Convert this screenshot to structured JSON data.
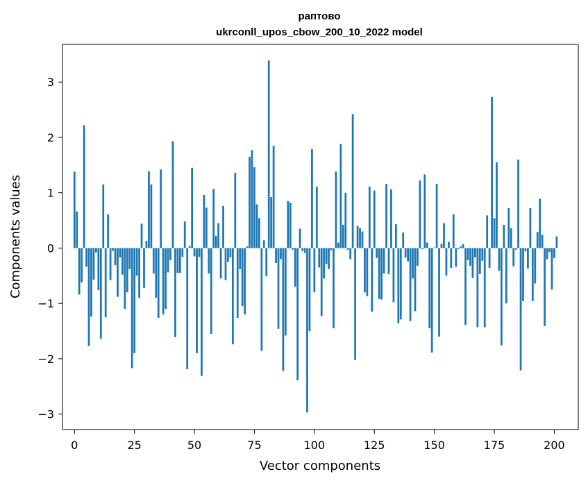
{
  "chart_data": {
    "type": "bar",
    "title_line1": "раптово",
    "title_line2": "ukrconll_upos_cbow_200_10_2022 model",
    "xlabel": "Vector components",
    "ylabel": "Components values",
    "xlim": [
      -5,
      210
    ],
    "ylim": [
      -3.28,
      3.68
    ],
    "xticks": [
      0,
      25,
      50,
      75,
      100,
      125,
      150,
      175,
      200
    ],
    "yticks": [
      -3,
      -2,
      -1,
      0,
      1,
      2,
      3
    ],
    "xtick_labels": [
      "0",
      "25",
      "50",
      "75",
      "100",
      "125",
      "150",
      "175",
      "200"
    ],
    "ytick_labels": [
      "−3",
      "−2",
      "−1",
      "0",
      "1",
      "2",
      "3"
    ],
    "bar_color": "#1f77b4",
    "grid": false,
    "values": [
      1.38,
      0.66,
      -0.84,
      -0.62,
      2.22,
      -0.34,
      -1.77,
      -1.24,
      -0.57,
      -0.08,
      -0.76,
      -1.64,
      1.15,
      -1.25,
      0.61,
      -0.58,
      -0.05,
      -0.31,
      -0.88,
      -0.17,
      -0.48,
      -1.1,
      -0.8,
      -0.38,
      -2.17,
      -1.9,
      -0.5,
      -0.9,
      0.44,
      -0.72,
      0.13,
      1.39,
      1.15,
      -0.46,
      -0.9,
      -1.26,
      1.42,
      -1.2,
      -1.1,
      -0.44,
      -0.22,
      1.93,
      -1.61,
      -0.45,
      -0.45,
      -0.16,
      0.48,
      -2.19,
      0.04,
      1.45,
      -0.15,
      -1.9,
      -0.16,
      -2.31,
      0.96,
      0.73,
      -0.46,
      -1.55,
      1.07,
      0.22,
      0.45,
      -0.55,
      0.76,
      -0.58,
      -0.25,
      -0.17,
      -1.74,
      1.36,
      -1.26,
      -0.38,
      -1.05,
      -1.2,
      0.03,
      1.65,
      1.77,
      1.46,
      0.79,
      0.54,
      -1.86,
      0.14,
      -0.51,
      3.39,
      0.92,
      1.85,
      -0.27,
      -1.46,
      -0.2,
      -2.22,
      -1.58,
      0.85,
      0.82,
      -0.03,
      -0.7,
      -2.39,
      0.35,
      -0.05,
      -0.09,
      -2.97,
      -1.5,
      1.79,
      -0.8,
      1.11,
      -0.35,
      -1.23,
      -0.55,
      -0.29,
      -0.38,
      -0.04,
      -1.45,
      1.38,
      0.1,
      1.88,
      0.42,
      1.0,
      -0.03,
      -0.2,
      2.42,
      -2.02,
      0.4,
      0.36,
      0.3,
      -0.8,
      -0.87,
      1.11,
      -1.15,
      1.04,
      -0.18,
      -0.92,
      -0.93,
      -0.46,
      1.16,
      -0.47,
      1.06,
      -0.98,
      0.43,
      -1.36,
      -1.29,
      0.28,
      -0.17,
      -0.24,
      -1.32,
      -0.55,
      -1.14,
      -0.32,
      1.22,
      -0.02,
      1.33,
      0.1,
      -1.45,
      -1.89,
      0.01,
      1.16,
      -1.6,
      0.08,
      0.45,
      -0.5,
      0.11,
      -0.36,
      0.61,
      -0.34,
      -0.02,
      0.03,
      0.07,
      -1.39,
      -0.22,
      -0.32,
      -0.54,
      -0.17,
      -1.43,
      -0.47,
      -0.23,
      -1.43,
      0.59,
      -0.36,
      2.73,
      0.54,
      1.55,
      -0.41,
      -1.76,
      0.42,
      -1.0,
      0.72,
      0.36,
      -0.33,
      -0.03,
      1.6,
      -2.21,
      -0.96,
      -0.06,
      -0.37,
      0.72,
      -0.96,
      -0.64,
      0.29,
      0.89,
      0.24,
      -1.41,
      -0.2,
      -0.07,
      -0.75,
      -0.18,
      0.21
    ]
  }
}
